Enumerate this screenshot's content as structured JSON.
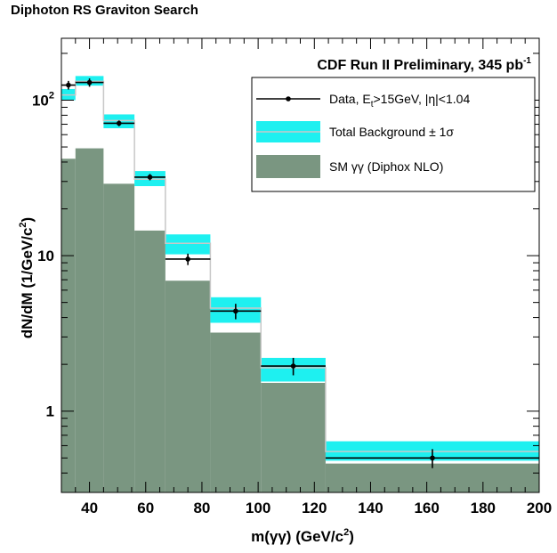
{
  "page_title": "Diphoton RS Graviton Search",
  "chart_data": {
    "type": "histogram",
    "title": "",
    "annotation": {
      "text": "CDF Run II Preliminary, 345 pb",
      "superscript": "-1"
    },
    "xlabel": {
      "main": "m(γγ) (GeV/c",
      "sup": "2",
      "tail": ")"
    },
    "ylabel": {
      "main": "dN/dM (1/GeV/c",
      "sup": "2",
      "tail": ")"
    },
    "xlim": [
      30,
      200
    ],
    "ylim": [
      0.3,
      250
    ],
    "ylog": true,
    "grid": false,
    "legend_position": "top-right",
    "x_ticks": [
      "40",
      "60",
      "80",
      "100",
      "120",
      "140",
      "160",
      "180",
      "200"
    ],
    "y_ticks": [
      {
        "value": 1,
        "label": "1",
        "sup": ""
      },
      {
        "value": 10,
        "label": "10",
        "sup": ""
      },
      {
        "value": 100,
        "label": "10",
        "sup": "2"
      }
    ],
    "legend": [
      {
        "kind": "data",
        "label": "Data, E",
        "sub": "t",
        "label2": ">15GeV, |η|<1.04"
      },
      {
        "kind": "band",
        "label": "Total Background ± 1σ"
      },
      {
        "kind": "fill",
        "label": "SM γγ (Diphox NLO)"
      }
    ],
    "colors": {
      "sm_fill": "#7a9681",
      "band_fill": "#1ef0f0",
      "total_line": "#c8c8c8",
      "data": "#000000",
      "axis": "#000000"
    },
    "bins": [
      {
        "lo": 30,
        "hi": 35,
        "sm": 42,
        "total": 108,
        "band_lo": 100,
        "band_hi": 118,
        "data": 125,
        "data_err_lo": 8,
        "data_err_hi": 8
      },
      {
        "lo": 35,
        "hi": 45,
        "sm": 49,
        "total": 132,
        "band_lo": 124,
        "band_hi": 143,
        "data": 130,
        "data_err_lo": 8,
        "data_err_hi": 8
      },
      {
        "lo": 45,
        "hi": 56,
        "sm": 29,
        "total": 74,
        "band_lo": 66,
        "band_hi": 81,
        "data": 71,
        "data_err_lo": 3,
        "data_err_hi": 3
      },
      {
        "lo": 56,
        "hi": 67,
        "sm": 14.5,
        "total": 31,
        "band_lo": 28,
        "band_hi": 35,
        "data": 32,
        "data_err_lo": 1.5,
        "data_err_hi": 1.5
      },
      {
        "lo": 67,
        "hi": 83,
        "sm": 6.9,
        "total": 12,
        "band_lo": 10.2,
        "band_hi": 13.7,
        "data": 9.5,
        "data_err_lo": 0.8,
        "data_err_hi": 0.8
      },
      {
        "lo": 83,
        "hi": 101,
        "sm": 3.2,
        "total": 4.6,
        "band_lo": 3.7,
        "band_hi": 5.4,
        "data": 4.4,
        "data_err_lo": 0.5,
        "data_err_hi": 0.5
      },
      {
        "lo": 101,
        "hi": 124,
        "sm": 1.52,
        "total": 1.9,
        "band_lo": 1.55,
        "band_hi": 2.2,
        "data": 1.95,
        "data_err_lo": 0.25,
        "data_err_hi": 0.25
      },
      {
        "lo": 124,
        "hi": 200,
        "sm": 0.46,
        "total": 0.55,
        "band_lo": 0.48,
        "band_hi": 0.64,
        "data": 0.5,
        "data_err_lo": 0.07,
        "data_err_hi": 0.07
      }
    ]
  }
}
